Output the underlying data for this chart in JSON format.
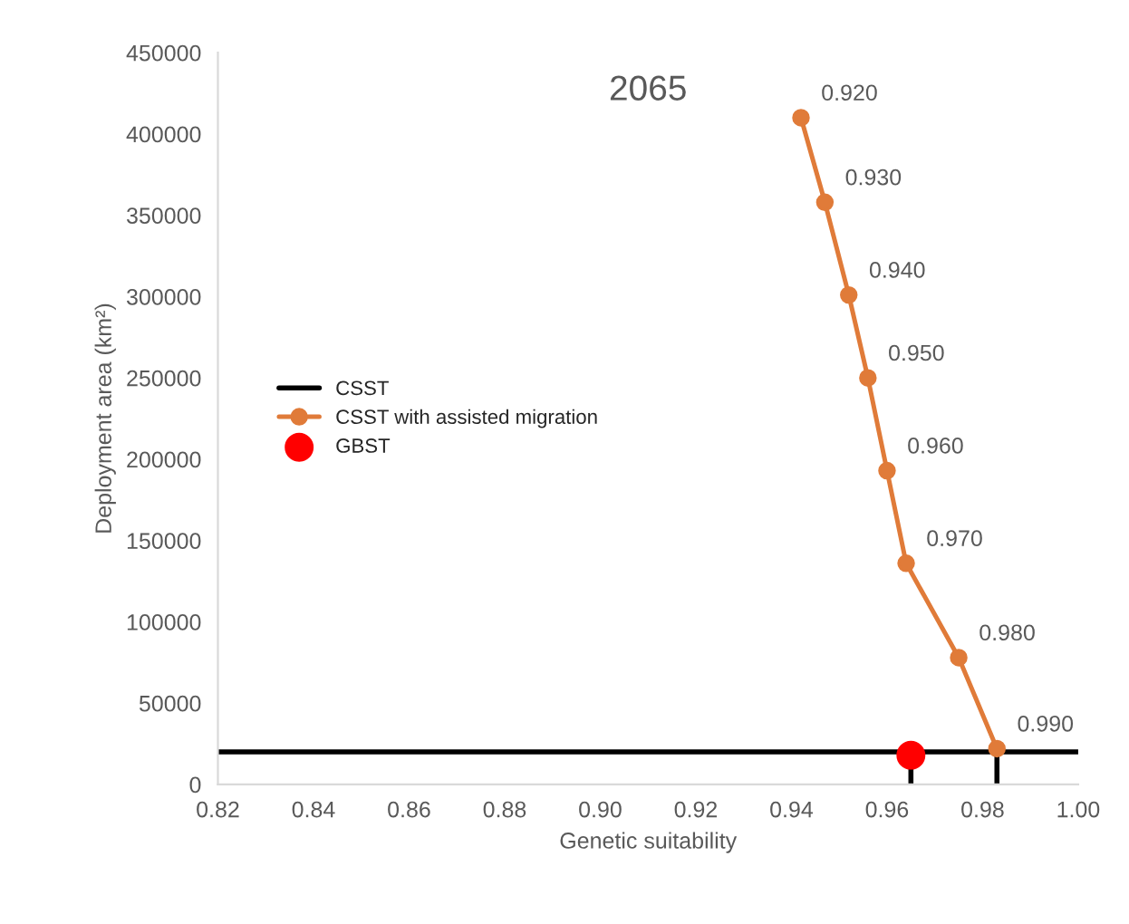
{
  "chart_data": {
    "type": "line",
    "title": "2065",
    "xlabel": "Genetic suitability",
    "ylabel": "Deployment area (km²)",
    "xlim": [
      0.82,
      1.0
    ],
    "xticks": [
      {
        "value": 0.82,
        "label": "0.82"
      },
      {
        "value": 0.84,
        "label": "0.84"
      },
      {
        "value": 0.86,
        "label": "0.86"
      },
      {
        "value": 0.88,
        "label": "0.88"
      },
      {
        "value": 0.9,
        "label": "0.90"
      },
      {
        "value": 0.92,
        "label": "0.92"
      },
      {
        "value": 0.94,
        "label": "0.94"
      },
      {
        "value": 0.96,
        "label": "0.96"
      },
      {
        "value": 0.98,
        "label": "0.98"
      },
      {
        "value": 1.0,
        "label": "1.00"
      }
    ],
    "ylim": [
      0,
      450000
    ],
    "yticks": [
      0,
      50000,
      100000,
      150000,
      200000,
      250000,
      300000,
      350000,
      400000,
      450000
    ],
    "annotations": [
      {
        "text": "0.920",
        "x": 0.942,
        "y": 410000
      },
      {
        "text": "0.930",
        "x": 0.947,
        "y": 358000
      },
      {
        "text": "0.940",
        "x": 0.952,
        "y": 301000
      },
      {
        "text": "0.950",
        "x": 0.956,
        "y": 250000
      },
      {
        "text": "0.960",
        "x": 0.96,
        "y": 193000
      },
      {
        "text": "0.970",
        "x": 0.964,
        "y": 136000
      },
      {
        "text": "0.980",
        "x": 0.975,
        "y": 78000
      },
      {
        "text": "0.990",
        "x": 0.983,
        "y": 22000
      }
    ],
    "grid": false,
    "legend": "left",
    "marker": "circle",
    "series": [
      {
        "name": "CSST",
        "color": "#000000",
        "marker": "none",
        "x": [
          0.82,
          1.0
        ],
        "values": [
          20000,
          20000
        ]
      },
      {
        "name": "CSST with assisted migration",
        "color": "#e07b39",
        "x": [
          0.942,
          0.947,
          0.952,
          0.956,
          0.96,
          0.964,
          0.975,
          0.983
        ],
        "values": [
          410000,
          358000,
          301000,
          250000,
          193000,
          136000,
          78000,
          22000
        ]
      },
      {
        "name": "GBST",
        "type": "scatter",
        "color": "#ff0000",
        "x": [
          0.965
        ],
        "values": [
          18000
        ]
      },
      {
        "type": "line",
        "color": "#000000",
        "marker": "none",
        "x": [
          0.965,
          0.965
        ],
        "values": [
          0,
          20000
        ]
      },
      {
        "type": "line",
        "color": "#000000",
        "marker": "none",
        "x": [
          0.983,
          0.983
        ],
        "values": [
          0,
          20000
        ]
      }
    ]
  }
}
